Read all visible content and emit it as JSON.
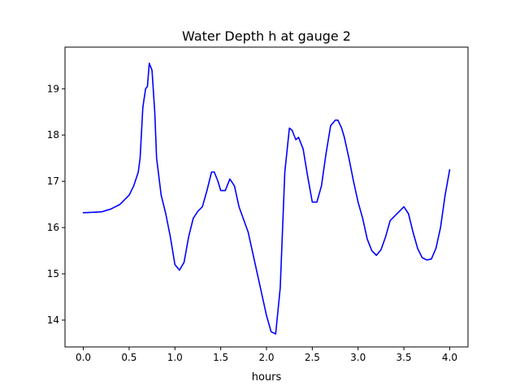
{
  "chart_data": {
    "type": "line",
    "title": "Water Depth h at gauge 2",
    "xlabel": "hours",
    "ylabel": "",
    "xlim": [
      -0.2,
      4.2
    ],
    "ylim": [
      13.42,
      19.9
    ],
    "xticks": [
      0.0,
      0.5,
      1.0,
      1.5,
      2.0,
      2.5,
      3.0,
      3.5,
      4.0
    ],
    "xtick_labels": [
      "0.0",
      "0.5",
      "1.0",
      "1.5",
      "2.0",
      "2.5",
      "3.0",
      "3.5",
      "4.0"
    ],
    "yticks": [
      14,
      15,
      16,
      17,
      18,
      19
    ],
    "ytick_labels": [
      "14",
      "15",
      "16",
      "17",
      "18",
      "19"
    ],
    "grid": false,
    "series": [
      {
        "color": "#0000ff",
        "x": [
          0.0,
          0.1,
          0.2,
          0.3,
          0.4,
          0.5,
          0.55,
          0.6,
          0.62,
          0.65,
          0.68,
          0.7,
          0.72,
          0.75,
          0.78,
          0.8,
          0.85,
          0.9,
          0.95,
          1.0,
          1.05,
          1.1,
          1.15,
          1.2,
          1.25,
          1.3,
          1.35,
          1.4,
          1.43,
          1.47,
          1.5,
          1.55,
          1.6,
          1.65,
          1.7,
          1.8,
          1.9,
          1.95,
          2.0,
          2.05,
          2.1,
          2.15,
          2.2,
          2.25,
          2.28,
          2.32,
          2.35,
          2.4,
          2.45,
          2.5,
          2.55,
          2.6,
          2.65,
          2.7,
          2.75,
          2.78,
          2.82,
          2.85,
          2.9,
          2.95,
          3.0,
          3.05,
          3.1,
          3.15,
          3.2,
          3.25,
          3.3,
          3.35,
          3.4,
          3.45,
          3.5,
          3.55,
          3.6,
          3.65,
          3.7,
          3.75,
          3.8,
          3.85,
          3.9,
          3.95,
          4.0
        ],
        "y": [
          16.32,
          16.33,
          16.34,
          16.4,
          16.5,
          16.7,
          16.9,
          17.2,
          17.5,
          18.6,
          19.0,
          19.05,
          19.55,
          19.4,
          18.5,
          17.5,
          16.7,
          16.3,
          15.8,
          15.2,
          15.08,
          15.25,
          15.8,
          16.2,
          16.35,
          16.45,
          16.8,
          17.2,
          17.2,
          17.0,
          16.8,
          16.8,
          17.05,
          16.9,
          16.45,
          15.9,
          15.0,
          14.55,
          14.1,
          13.75,
          13.7,
          14.7,
          17.2,
          18.15,
          18.1,
          17.9,
          17.95,
          17.7,
          17.1,
          16.55,
          16.55,
          16.9,
          17.6,
          18.2,
          18.32,
          18.32,
          18.15,
          17.95,
          17.5,
          17.0,
          16.55,
          16.2,
          15.75,
          15.5,
          15.4,
          15.52,
          15.8,
          16.15,
          16.25,
          16.35,
          16.45,
          16.3,
          15.9,
          15.55,
          15.35,
          15.3,
          15.32,
          15.55,
          16.0,
          16.7,
          17.25
        ]
      }
    ]
  }
}
